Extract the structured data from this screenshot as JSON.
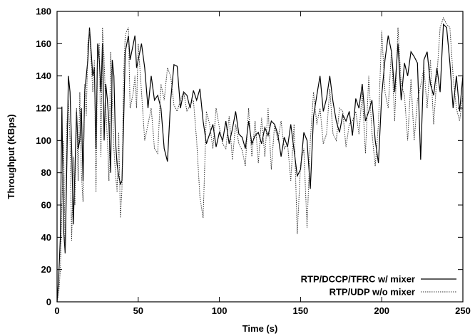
{
  "chart_data": {
    "type": "line",
    "title": "",
    "xlabel": "Time (s)",
    "ylabel": "Throughput (KBps)",
    "xlim": [
      0,
      250
    ],
    "ylim": [
      0,
      180
    ],
    "x_ticks": [
      0,
      50,
      100,
      150,
      200,
      250
    ],
    "y_ticks": [
      0,
      20,
      40,
      60,
      80,
      100,
      120,
      140,
      160,
      180
    ],
    "grid": false,
    "legend_position": "bottom-right",
    "series": [
      {
        "name": "RTP/DCCP/TFRC w/ mixer",
        "color": "#000000",
        "style": "solid",
        "x": [
          0,
          1,
          2,
          3,
          4,
          5,
          6,
          7,
          8,
          9,
          10,
          11,
          12,
          13,
          14,
          15,
          16,
          17,
          18,
          19,
          20,
          21,
          22,
          23,
          24,
          25,
          26,
          27,
          28,
          29,
          30,
          31,
          32,
          33,
          34,
          35,
          36,
          37,
          38,
          39,
          40,
          41,
          42,
          43,
          44,
          45,
          46,
          47,
          48,
          49,
          50,
          52,
          54,
          56,
          58,
          60,
          62,
          64,
          66,
          68,
          70,
          72,
          74,
          76,
          78,
          80,
          82,
          84,
          86,
          88,
          90,
          92,
          94,
          96,
          98,
          100,
          102,
          104,
          106,
          108,
          110,
          112,
          114,
          116,
          118,
          120,
          122,
          124,
          126,
          128,
          130,
          132,
          134,
          136,
          138,
          140,
          142,
          144,
          146,
          148,
          150,
          152,
          154,
          156,
          158,
          160,
          162,
          164,
          166,
          168,
          170,
          172,
          174,
          176,
          178,
          180,
          182,
          184,
          186,
          188,
          190,
          192,
          194,
          196,
          198,
          200,
          202,
          204,
          206,
          208,
          210,
          212,
          214,
          216,
          218,
          220,
          222,
          224,
          226,
          228,
          230,
          232,
          234,
          236,
          238,
          240,
          242,
          244,
          246,
          248,
          250
        ],
        "y": [
          0,
          15,
          40,
          121,
          45,
          30,
          85,
          140,
          130,
          95,
          48,
          80,
          118,
          95,
          100,
          120,
          75,
          130,
          140,
          150,
          170,
          155,
          140,
          145,
          95,
          160,
          150,
          130,
          160,
          100,
          135,
          125,
          110,
          80,
          150,
          140,
          100,
          85,
          78,
          73,
          75,
          110,
          155,
          160,
          165,
          150,
          155,
          160,
          165,
          145,
          150,
          160,
          145,
          120,
          140,
          125,
          128,
          120,
          95,
          87,
          125,
          147,
          146,
          120,
          130,
          128,
          120,
          131,
          125,
          132,
          112,
          98,
          104,
          110,
          96,
          105,
          100,
          112,
          98,
          107,
          118,
          104,
          102,
          95,
          112,
          98,
          103,
          105,
          98,
          108,
          103,
          112,
          110,
          104,
          90,
          102,
          96,
          110,
          94,
          78,
          82,
          105,
          100,
          70,
          115,
          128,
          140,
          118,
          126,
          140,
          124,
          112,
          105,
          116,
          112,
          118,
          103,
          126,
          120,
          135,
          112,
          118,
          125,
          100,
          86,
          128,
          150,
          165,
          155,
          130,
          160,
          125,
          148,
          140,
          155,
          152,
          148,
          88,
          150,
          155,
          135,
          128,
          145,
          130,
          172,
          170,
          148,
          120,
          140,
          118,
          140
        ]
      },
      {
        "name": "RTP/UDP w/o mixer",
        "color": "#333333",
        "style": "dotted",
        "x": [
          0,
          1,
          2,
          3,
          4,
          5,
          6,
          7,
          8,
          9,
          10,
          11,
          12,
          13,
          14,
          15,
          16,
          17,
          18,
          19,
          20,
          21,
          22,
          23,
          24,
          25,
          26,
          27,
          28,
          29,
          30,
          31,
          32,
          33,
          34,
          35,
          36,
          37,
          38,
          39,
          40,
          41,
          42,
          43,
          44,
          45,
          46,
          47,
          48,
          49,
          50,
          52,
          54,
          56,
          58,
          60,
          62,
          64,
          66,
          68,
          70,
          72,
          74,
          76,
          78,
          80,
          82,
          84,
          86,
          88,
          90,
          92,
          94,
          96,
          98,
          100,
          102,
          104,
          106,
          108,
          110,
          112,
          114,
          116,
          118,
          120,
          122,
          124,
          126,
          128,
          130,
          132,
          134,
          136,
          138,
          140,
          142,
          144,
          146,
          148,
          150,
          152,
          154,
          156,
          158,
          160,
          162,
          164,
          166,
          168,
          170,
          172,
          174,
          176,
          178,
          180,
          182,
          184,
          186,
          188,
          190,
          192,
          194,
          196,
          198,
          200,
          202,
          204,
          206,
          208,
          210,
          212,
          214,
          216,
          218,
          220,
          222,
          224,
          226,
          228,
          230,
          232,
          234,
          236,
          238,
          240,
          242,
          244,
          246,
          248,
          250
        ],
        "y": [
          0,
          5,
          20,
          60,
          100,
          30,
          110,
          125,
          100,
          38,
          90,
          60,
          120,
          75,
          130,
          80,
          62,
          135,
          115,
          160,
          168,
          150,
          130,
          150,
          68,
          155,
          160,
          90,
          170,
          150,
          120,
          100,
          75,
          155,
          125,
          95,
          80,
          68,
          105,
          52,
          70,
          140,
          165,
          168,
          170,
          120,
          125,
          130,
          140,
          120,
          160,
          130,
          100,
          110,
          120,
          95,
          92,
          135,
          125,
          145,
          140,
          122,
          118,
          125,
          130,
          118,
          122,
          125,
          100,
          65,
          52,
          118,
          110,
          95,
          120,
          108,
          98,
          95,
          115,
          88,
          110,
          98,
          94,
          84,
          120,
          90,
          112,
          86,
          114,
          90,
          120,
          82,
          110,
          100,
          112,
          95,
          98,
          75,
          110,
          42,
          85,
          95,
          46,
          100,
          130,
          110,
          120,
          98,
          104,
          132,
          104,
          100,
          120,
          118,
          96,
          110,
          112,
          118,
          104,
          130,
          92,
          140,
          105,
          84,
          110,
          168,
          130,
          120,
          156,
          112,
          170,
          135,
          128,
          100,
          138,
          100,
          125,
          134,
          145,
          120,
          150,
          110,
          140,
          170,
          176,
          172,
          170,
          140,
          120,
          112,
          128
        ]
      }
    ]
  }
}
